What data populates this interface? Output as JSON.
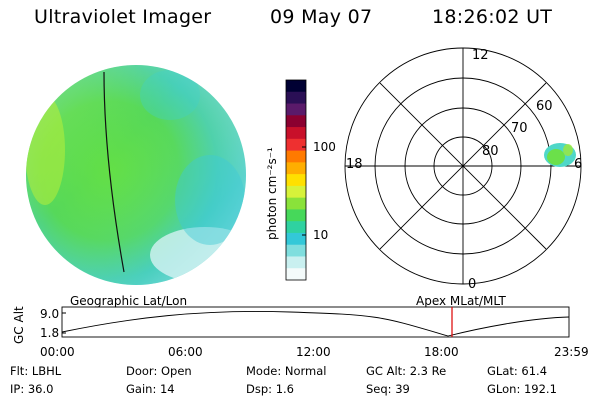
{
  "header": {
    "title": "Ultraviolet Imager",
    "date": "09 May 07",
    "time": "18:26:02 UT"
  },
  "colorbar": {
    "unit_label": "photon cm⁻²s⁻¹",
    "tick_labels": [
      "100",
      "10"
    ],
    "colors": [
      "#000033",
      "#2a0f55",
      "#5a1a6a",
      "#8b0030",
      "#c8102a",
      "#ee3030",
      "#ff7a00",
      "#ffae00",
      "#ffe000",
      "#d7f23a",
      "#8ae23a",
      "#46d85a",
      "#2fd2a0",
      "#33c8d8",
      "#7fdede",
      "#c9f0f0",
      "#f4fbfb"
    ]
  },
  "polar_plot": {
    "mlt_labels": [
      "12",
      "18",
      "6",
      "0"
    ],
    "lat_labels": [
      "80",
      "70",
      "60"
    ]
  },
  "timeline": {
    "ylabel": "GC Alt",
    "ytick_labels": [
      "9.0",
      "1.8"
    ],
    "left_title": "Geographic Lat/Lon",
    "right_title": "Apex MLat/MLT",
    "xtick_labels": [
      "00:00",
      "06:00",
      "12:00",
      "18:00",
      "23:59"
    ],
    "marker_color": "#dd0000"
  },
  "info": {
    "row1": [
      {
        "label": "Flt:",
        "value": "LBHL"
      },
      {
        "label": "Door:",
        "value": "Open"
      },
      {
        "label": "Mode:",
        "value": "Normal"
      },
      {
        "label": "GC Alt:",
        "value": "2.3 Re"
      },
      {
        "label": "GLat:",
        "value": "61.4"
      }
    ],
    "row2": [
      {
        "label": "IP:",
        "value": "36.0"
      },
      {
        "label": "Gain:",
        "value": "14"
      },
      {
        "label": "Dsp:",
        "value": "1.6"
      },
      {
        "label": "Seq:",
        "value": "39"
      },
      {
        "label": "GLon:",
        "value": "192.1"
      }
    ]
  }
}
